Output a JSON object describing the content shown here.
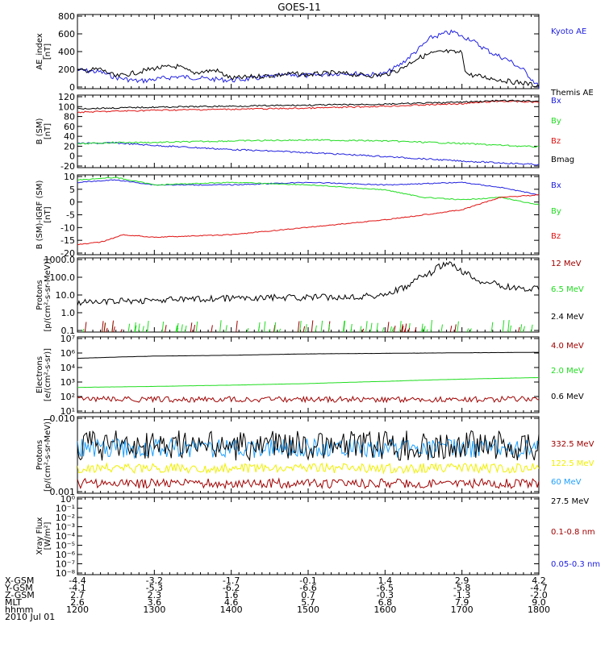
{
  "title": "GOES-11",
  "colors": {
    "blue": "#2020e0",
    "red": "#e01010",
    "green": "#20dd20",
    "black": "#000000",
    "darkred": "#a00000",
    "yellow": "#f0f000",
    "cyan": "#20a0ff"
  },
  "chart_data": [
    {
      "type": "line",
      "ylabel": "AE_index\n[nT]",
      "yticks": [
        "800",
        "600",
        "400",
        "200",
        "0"
      ],
      "ylim": [
        0,
        800
      ],
      "series": [
        {
          "name": "Kyoto AE",
          "color": "blue",
          "x": [
            12.0,
            12.3,
            12.5,
            12.8,
            13.0,
            13.3,
            13.5,
            13.8,
            14.0,
            14.3,
            14.5,
            14.8,
            15.0,
            15.3,
            15.5,
            15.8,
            16.0,
            16.2,
            16.4,
            16.6,
            16.8,
            16.9,
            17.0,
            17.1,
            17.2,
            17.4,
            17.6,
            17.8,
            18.0
          ],
          "y": [
            200,
            180,
            120,
            80,
            100,
            130,
            120,
            100,
            90,
            110,
            130,
            150,
            140,
            160,
            170,
            150,
            160,
            260,
            400,
            550,
            600,
            610,
            560,
            540,
            480,
            380,
            310,
            200,
            20
          ]
        },
        {
          "name": "Themis AE",
          "color": "black",
          "x": [
            12.0,
            12.3,
            12.5,
            12.8,
            13.0,
            13.3,
            13.5,
            13.8,
            14.0,
            14.3,
            14.5,
            14.8,
            15.0,
            15.3,
            15.5,
            15.8,
            16.0,
            16.2,
            16.4,
            16.6,
            16.8,
            16.9,
            17.0,
            17.05,
            17.1,
            17.4,
            17.6,
            17.8,
            18.0
          ],
          "y": [
            190,
            210,
            130,
            180,
            220,
            240,
            170,
            200,
            110,
            130,
            140,
            160,
            150,
            170,
            160,
            140,
            150,
            210,
            320,
            380,
            400,
            390,
            390,
            170,
            150,
            110,
            80,
            60,
            30
          ]
        }
      ]
    },
    {
      "type": "line",
      "ylabel": "B (SM)\n[nT]",
      "yticks": [
        "120",
        "100",
        "80",
        "60",
        "40",
        "20",
        "0",
        "-20"
      ],
      "ylim": [
        -22,
        122
      ],
      "series": [
        {
          "name": "Bx",
          "color": "blue",
          "x": [
            12.0,
            12.5,
            13.0,
            14.0,
            15.0,
            16.0,
            17.0,
            18.0
          ],
          "y": [
            26,
            27,
            22,
            14,
            8,
            0,
            -9,
            -16
          ]
        },
        {
          "name": "By",
          "color": "green",
          "x": [
            12.0,
            12.5,
            13.0,
            14.0,
            15.0,
            16.0,
            17.0,
            18.0
          ],
          "y": [
            25,
            28,
            28,
            31,
            33,
            31,
            26,
            19
          ]
        },
        {
          "name": "Bz",
          "color": "red",
          "x": [
            12.0,
            13.0,
            14.0,
            15.0,
            16.0,
            17.0,
            17.5,
            18.0
          ],
          "y": [
            88,
            92,
            94,
            96,
            100,
            105,
            110,
            108
          ]
        },
        {
          "name": "Bmag",
          "color": "black",
          "x": [
            12.0,
            13.0,
            14.0,
            15.0,
            16.0,
            17.0,
            17.5,
            18.0
          ],
          "y": [
            95,
            98,
            100,
            102,
            104,
            108,
            111,
            110
          ]
        }
      ]
    },
    {
      "type": "line",
      "ylabel": "B (SM)-IGRF (SM)\n[nT]",
      "yticks": [
        "10",
        "5",
        "0",
        "-5",
        "-10",
        "-15",
        "-20"
      ],
      "ylim": [
        -21,
        11
      ],
      "series": [
        {
          "name": "Bx",
          "color": "blue",
          "x": [
            12.0,
            12.5,
            13.0,
            14.0,
            15.0,
            16.0,
            17.0,
            17.5,
            18.0
          ],
          "y": [
            8,
            9,
            7,
            7,
            8,
            7,
            8,
            6,
            3
          ]
        },
        {
          "name": "By",
          "color": "green",
          "x": [
            12.0,
            12.5,
            13.0,
            14.0,
            15.0,
            16.0,
            16.5,
            17.0,
            17.5,
            18.0
          ],
          "y": [
            9,
            10,
            7,
            8,
            7,
            5,
            2,
            1,
            2,
            -1
          ]
        },
        {
          "name": "Bz",
          "color": "red",
          "x": [
            12.0,
            12.3,
            12.6,
            13.0,
            14.0,
            15.0,
            16.0,
            16.5,
            17.0,
            17.5,
            18.0
          ],
          "y": [
            -17,
            -16,
            -13,
            -14,
            -13,
            -10,
            -7,
            -5,
            -3,
            2,
            3
          ]
        }
      ]
    },
    {
      "type": "line",
      "log": true,
      "ylabel": "Protons\n[p/(cm²-s-sr-MeV)]",
      "yticks": [
        "1000.0",
        "100.0",
        "10.0",
        "1.0",
        "0.1"
      ],
      "ylim": [
        0.1,
        2000
      ],
      "series": [
        {
          "name": "12 MeV",
          "color": "darkred",
          "x": [],
          "y": []
        },
        {
          "name": "6.5 MeV",
          "color": "green",
          "x": [],
          "y": []
        },
        {
          "name": "2.4 MeV",
          "color": "black",
          "x": [
            12.0,
            12.5,
            13.0,
            13.5,
            14.0,
            14.5,
            15.0,
            15.5,
            16.0,
            16.3,
            16.6,
            16.8,
            16.9,
            17.0,
            17.2,
            17.5,
            17.8,
            18.0
          ],
          "y": [
            5,
            6,
            7,
            8,
            9,
            10,
            10,
            11,
            14,
            40,
            250,
            900,
            700,
            300,
            100,
            50,
            30,
            35
          ]
        }
      ]
    },
    {
      "type": "line",
      "log": true,
      "ylabel": "Electrons\n[e/(cm²-s-sr)]",
      "yticks": [
        "10⁷",
        "10⁶",
        "10⁴",
        "10³",
        "10²",
        "10¹"
      ],
      "ylim": [
        10,
        10000000
      ],
      "series": [
        {
          "name": "4.0 MeV",
          "color": "darkred",
          "x": [
            12.0,
            13.0,
            14.0,
            15.0,
            16.0,
            17.0,
            18.0
          ],
          "y": [
            120,
            110,
            115,
            110,
            115,
            110,
            120
          ]
        },
        {
          "name": "2.0 MeV",
          "color": "green",
          "x": [
            12.0,
            13.0,
            14.0,
            15.0,
            16.0,
            17.0,
            18.0
          ],
          "y": [
            1000,
            1200,
            1500,
            2000,
            3000,
            4500,
            6000
          ]
        },
        {
          "name": "0.6 MeV",
          "color": "black",
          "x": [
            12.0,
            13.0,
            14.0,
            15.0,
            16.0,
            17.0,
            18.0
          ],
          "y": [
            200000,
            300000,
            350000,
            450000,
            500000,
            550000,
            600000
          ]
        }
      ]
    },
    {
      "type": "line",
      "log": true,
      "ylabel": "Protons\n[p/(cm²-s-sr-MeV)]",
      "yticks": [
        "0.010",
        "0.001"
      ],
      "ylim": [
        0.001,
        0.1
      ],
      "series": [
        {
          "name": "332.5 MeV",
          "color": "darkred",
          "x": [
            12.0,
            18.0
          ],
          "y": [
            0.0018,
            0.0018
          ]
        },
        {
          "name": "122.5 MeV",
          "color": "yellow",
          "x": [
            12.0,
            18.0
          ],
          "y": [
            0.0045,
            0.0045
          ]
        },
        {
          "name": "60 MeV",
          "color": "cyan",
          "x": [
            12.0,
            18.0
          ],
          "y": [
            0.015,
            0.015
          ]
        },
        {
          "name": "27.5 MeV",
          "color": "black",
          "x": [
            12.0,
            18.0
          ],
          "y": [
            0.018,
            0.018
          ]
        }
      ]
    },
    {
      "type": "line",
      "log": true,
      "ylabel": "Xray Flux\n[W/m²]",
      "yticks": [
        "10⁰",
        "10⁻¹",
        "10⁻²",
        "10⁻³",
        "10⁻⁴",
        "10⁻⁵",
        "10⁻⁶",
        "10⁻⁷",
        "10⁻⁸"
      ],
      "ylim": [
        1e-08,
        1
      ],
      "series": [
        {
          "name": "0.1-0.8 nm",
          "color": "darkred",
          "x": [],
          "y": []
        },
        {
          "name": "0.05-0.3 nm",
          "color": "blue",
          "x": [],
          "y": []
        }
      ]
    }
  ],
  "footer": {
    "row_labels": [
      "X-GSM",
      "Y-GSM",
      "Z-GSM",
      "MLT",
      "hhmm",
      "2010 Jul 01"
    ],
    "x_gsm": [
      "-4.4",
      "-3.2",
      "-1.7",
      "-0.1",
      "1.4",
      "2.9",
      "4.2"
    ],
    "y_gsm": [
      "-4.1",
      "-5.3",
      "-6.2",
      "-6.6",
      "-6.5",
      "-5.8",
      "-4.7"
    ],
    "z_gsm": [
      "2.7",
      "2.3",
      "1.6",
      "0.7",
      "-0.3",
      "-1.3",
      "-2.0"
    ],
    "mlt": [
      "2.6",
      "3.6",
      "4.6",
      "5.7",
      "6.8",
      "7.9",
      "9.0"
    ],
    "hhmm": [
      "1200",
      "1300",
      "1400",
      "1500",
      "1600",
      "1700",
      "1800"
    ]
  }
}
